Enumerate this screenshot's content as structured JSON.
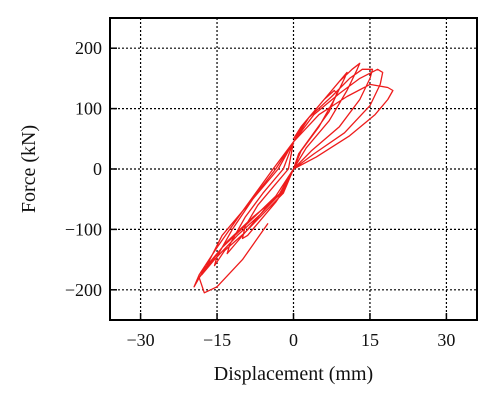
{
  "chart_data": {
    "type": "line",
    "title": "",
    "xlabel": "Displacement (mm)",
    "ylabel": "Force (kN)",
    "xlim": [
      -36,
      36
    ],
    "ylim": [
      -250,
      250
    ],
    "xticks": [
      -30,
      -15,
      0,
      15,
      30
    ],
    "yticks": [
      200,
      100,
      0,
      -100,
      -200
    ],
    "xtick_labels": [
      "−30",
      "−15",
      "0",
      "15",
      "30"
    ],
    "ytick_labels": [
      "200",
      "100",
      "0",
      "−100",
      "−200"
    ],
    "grid": true,
    "legend": "none",
    "series": [
      {
        "color": "#ee1c1c",
        "x": [
          0.0,
          1.5,
          4.0,
          6.0,
          8.0,
          8.5,
          7.0,
          4.0,
          1.0,
          0.0,
          -1.5,
          -3.5,
          -6.5,
          -9.0,
          -10.0,
          -9.5,
          -7.0,
          -4.0,
          -1.0,
          0.0,
          2.0,
          5.0,
          7.5,
          9.5,
          10.5,
          10.0,
          8.0,
          5.0,
          1.5,
          0.0,
          -2.0,
          -5.0,
          -8.5,
          -11.5,
          -13.0,
          -12.5,
          -9.5,
          -6.0,
          -2.0,
          0.0,
          2.5,
          6.0,
          9.0,
          11.5,
          13.0,
          12.5,
          10.5,
          7.0,
          2.5,
          0.0,
          -2.0,
          -5.5,
          -9.5,
          -13.5,
          -15.5,
          -15.0,
          -12.0,
          -8.0,
          -3.0,
          0.0,
          3.0,
          7.5,
          11.0,
          13.5,
          15.5,
          15.0,
          13.0,
          9.0,
          3.5,
          0.0,
          -2.5,
          -6.5,
          -11.0,
          -15.5,
          -18.0,
          -17.0,
          -14.0,
          -9.0,
          -3.5,
          0.0,
          4.0,
          9.0,
          13.0,
          16.5,
          17.5,
          17.0,
          15.0,
          10.0,
          4.0,
          0.0,
          -3.0,
          -8.0,
          -13.0,
          -17.5,
          -19.5,
          -18.5,
          -15.0,
          -10.0,
          -4.0,
          0.0,
          5.0,
          10.5,
          15.0,
          18.5,
          19.5,
          18.5,
          16.0,
          11.0,
          4.5,
          0.0,
          -3.5,
          -9.0,
          -14.0,
          -18.5,
          -17.5,
          -15.0,
          -10.0,
          -5.0
        ],
        "y": [
          50,
          70,
          95,
          115,
          130,
          125,
          95,
          60,
          25,
          0,
          -30,
          -55,
          -85,
          -110,
          -115,
          -95,
          -60,
          -30,
          0,
          45,
          75,
          105,
          130,
          150,
          160,
          150,
          115,
          70,
          30,
          0,
          -35,
          -60,
          -95,
          -125,
          -140,
          -125,
          -80,
          -40,
          0,
          45,
          80,
          115,
          145,
          165,
          175,
          165,
          130,
          80,
          35,
          0,
          -40,
          -70,
          -105,
          -135,
          -160,
          -145,
          -100,
          -50,
          0,
          45,
          85,
          120,
          150,
          165,
          165,
          150,
          115,
          70,
          30,
          0,
          -40,
          -75,
          -110,
          -150,
          -175,
          -160,
          -110,
          -60,
          0,
          45,
          90,
          125,
          150,
          165,
          160,
          140,
          105,
          60,
          25,
          0,
          -45,
          -80,
          -120,
          -165,
          -195,
          -175,
          -130,
          -70,
          0,
          45,
          90,
          120,
          140,
          135,
          130,
          115,
          90,
          55,
          20,
          0,
          -45,
          -90,
          -130,
          -180,
          -205,
          -195,
          -150,
          -90
        ]
      }
    ]
  }
}
